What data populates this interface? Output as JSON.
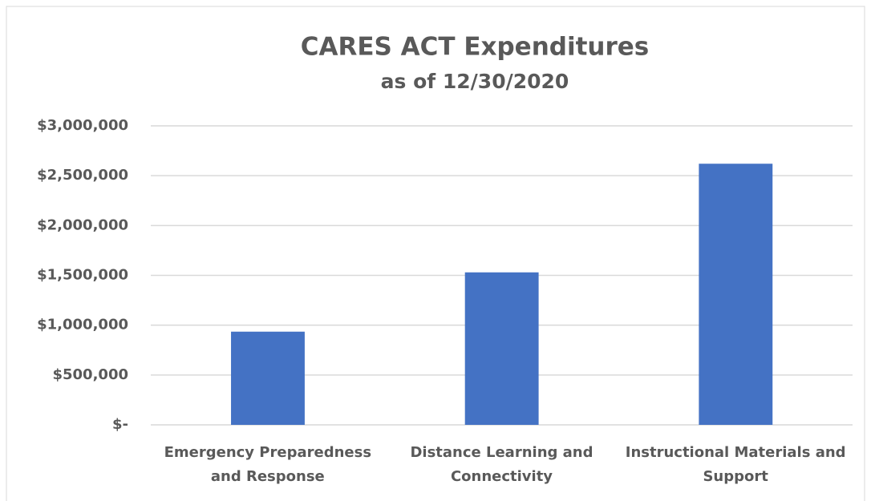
{
  "chart_data": {
    "type": "bar",
    "title": "CARES ACT Expenditures",
    "subtitle": "as of 12/30/2020",
    "categories": [
      "Emergency Preparedness and Response",
      "Distance Learning and Connectivity",
      "Instructional Materials and Support"
    ],
    "values": [
      935000,
      1530000,
      2620000
    ],
    "color": "#4472c4",
    "ylim": [
      0,
      3000000
    ],
    "yticks": [
      {
        "value": 0,
        "label": "$-"
      },
      {
        "value": 500000,
        "label": "$500,000"
      },
      {
        "value": 1000000,
        "label": "$1,000,000"
      },
      {
        "value": 1500000,
        "label": "$1,500,000"
      },
      {
        "value": 2000000,
        "label": "$2,000,000"
      },
      {
        "value": 2500000,
        "label": "$2,500,000"
      },
      {
        "value": 3000000,
        "label": "$3,000,000"
      }
    ],
    "grid": true
  }
}
